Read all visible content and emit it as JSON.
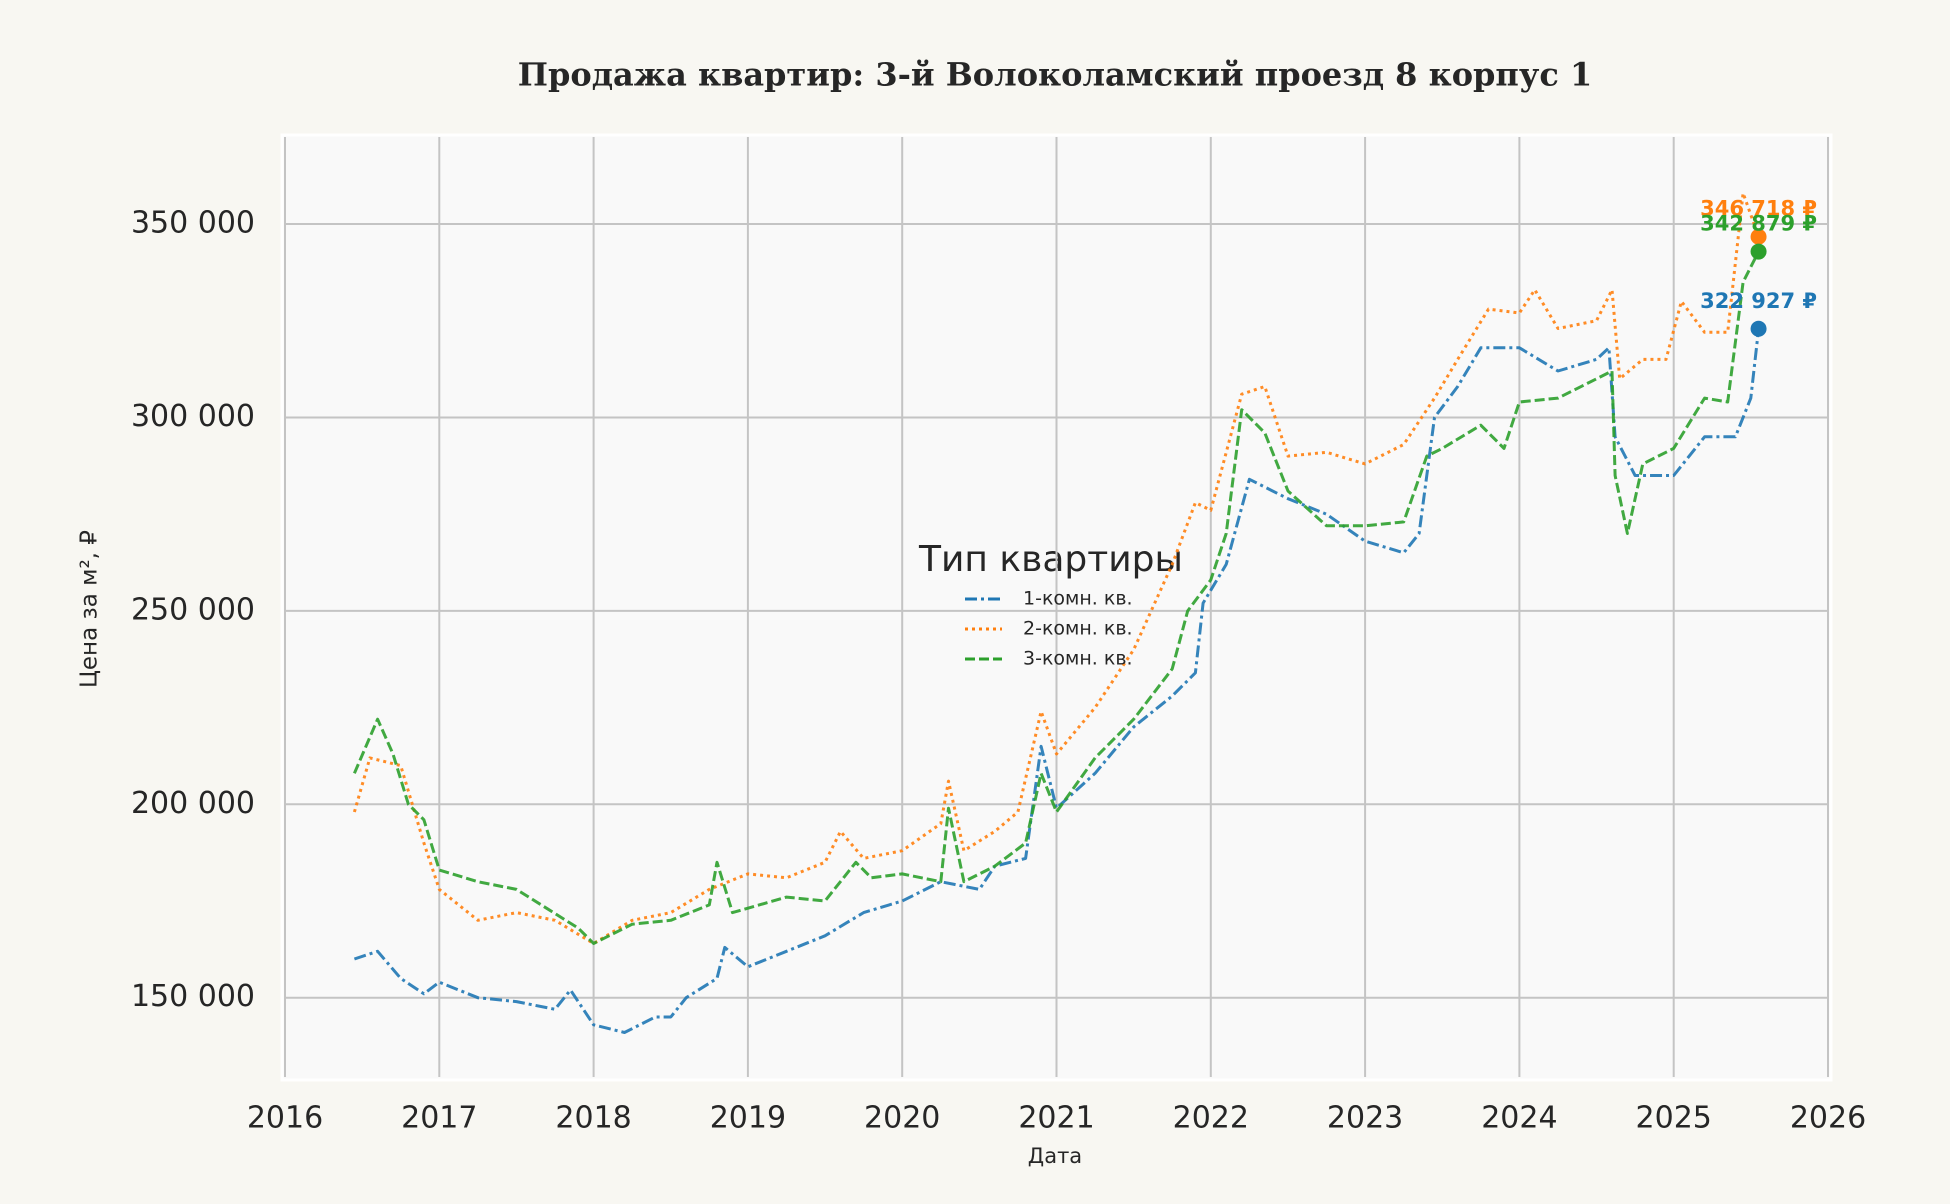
{
  "chart_data": {
    "type": "line",
    "title": "Продажа квартир: 3-й Волоколамский проезд 8 корпус 1",
    "x_label": "Дата",
    "y_label": "Цена за м², ₽",
    "legend_title": "Тип квартиры",
    "grid": true,
    "xlim": [
      2016,
      2026
    ],
    "xticks": [
      2016,
      2017,
      2018,
      2019,
      2020,
      2021,
      2022,
      2023,
      2024,
      2025,
      2026
    ],
    "ylim": [
      129500,
      372500
    ],
    "yticks": [
      {
        "value": 150000,
        "label": "150 000"
      },
      {
        "value": 200000,
        "label": "200 000"
      },
      {
        "value": 250000,
        "label": "250 000"
      },
      {
        "value": 300000,
        "label": "300 000"
      },
      {
        "value": 350000,
        "label": "350 000"
      }
    ],
    "series": [
      {
        "name": "1-комн. кв.",
        "color": "#1f77b4",
        "linestyle": "dashdot",
        "x": [
          2016.45,
          2016.6,
          2016.75,
          2016.9,
          2017.0,
          2017.25,
          2017.5,
          2017.75,
          2017.85,
          2018.0,
          2018.2,
          2018.4,
          2018.5,
          2018.6,
          2018.8,
          2018.85,
          2019.0,
          2019.25,
          2019.5,
          2019.75,
          2020.0,
          2020.25,
          2020.5,
          2020.6,
          2020.8,
          2020.9,
          2021.0,
          2021.25,
          2021.5,
          2021.75,
          2021.9,
          2021.95,
          2022.1,
          2022.25,
          2022.5,
          2022.75,
          2023.0,
          2023.25,
          2023.35,
          2023.45,
          2023.6,
          2023.75,
          2024.0,
          2024.25,
          2024.5,
          2024.58,
          2024.62,
          2024.75,
          2025.0,
          2025.2,
          2025.4,
          2025.5,
          2025.55
        ],
        "values": [
          160000,
          162000,
          155000,
          151000,
          154000,
          150000,
          149000,
          147000,
          152000,
          143000,
          141000,
          145000,
          145000,
          150000,
          155000,
          163000,
          158000,
          162000,
          166000,
          172000,
          175000,
          180000,
          178000,
          184000,
          186000,
          215000,
          199000,
          208000,
          220000,
          228000,
          234000,
          252000,
          262000,
          284000,
          279000,
          275000,
          268000,
          265000,
          270000,
          300000,
          308000,
          318000,
          318000,
          312000,
          315000,
          318000,
          295000,
          285000,
          285000,
          295000,
          295000,
          305000,
          322927
        ]
      },
      {
        "name": "2-комн. кв.",
        "color": "#ff7f0e",
        "linestyle": "dotted",
        "x": [
          2016.45,
          2016.55,
          2016.75,
          2016.9,
          2017.0,
          2017.25,
          2017.5,
          2017.75,
          2018.0,
          2018.25,
          2018.5,
          2018.75,
          2019.0,
          2019.25,
          2019.5,
          2019.6,
          2019.75,
          2020.0,
          2020.25,
          2020.3,
          2020.4,
          2020.6,
          2020.75,
          2020.9,
          2021.0,
          2021.25,
          2021.5,
          2021.75,
          2021.9,
          2022.0,
          2022.2,
          2022.35,
          2022.5,
          2022.75,
          2023.0,
          2023.25,
          2023.45,
          2023.6,
          2023.8,
          2024.0,
          2024.1,
          2024.25,
          2024.5,
          2024.6,
          2024.65,
          2024.8,
          2024.95,
          2025.05,
          2025.2,
          2025.35,
          2025.45,
          2025.55
        ],
        "values": [
          198000,
          212000,
          210000,
          190000,
          178000,
          170000,
          172000,
          170000,
          164000,
          170000,
          172000,
          178000,
          182000,
          181000,
          185000,
          193000,
          186000,
          188000,
          195000,
          206000,
          188000,
          193000,
          198000,
          224000,
          213000,
          225000,
          240000,
          262000,
          278000,
          276000,
          306000,
          308000,
          290000,
          291000,
          288000,
          293000,
          305000,
          315000,
          328000,
          327000,
          333000,
          323000,
          325000,
          333000,
          310000,
          315000,
          315000,
          330000,
          322000,
          322000,
          358000,
          346718
        ]
      },
      {
        "name": "3-комн. кв.",
        "color": "#2ca02c",
        "linestyle": "dashed",
        "x": [
          2016.45,
          2016.6,
          2016.7,
          2016.8,
          2016.9,
          2017.0,
          2017.25,
          2017.5,
          2017.7,
          2017.9,
          2018.0,
          2018.25,
          2018.5,
          2018.75,
          2018.8,
          2018.9,
          2019.25,
          2019.5,
          2019.7,
          2019.8,
          2020.0,
          2020.25,
          2020.3,
          2020.4,
          2020.6,
          2020.8,
          2020.9,
          2021.0,
          2021.25,
          2021.5,
          2021.75,
          2021.85,
          2022.0,
          2022.1,
          2022.2,
          2022.35,
          2022.5,
          2022.75,
          2023.0,
          2023.25,
          2023.4,
          2023.5,
          2023.75,
          2023.9,
          2024.0,
          2024.25,
          2024.5,
          2024.6,
          2024.62,
          2024.7,
          2024.8,
          2025.0,
          2025.2,
          2025.35,
          2025.45,
          2025.55
        ],
        "values": [
          208000,
          222000,
          213000,
          200000,
          196000,
          183000,
          180000,
          178000,
          173000,
          168000,
          164000,
          169000,
          170000,
          174000,
          185000,
          172000,
          176000,
          175000,
          185000,
          181000,
          182000,
          180000,
          199000,
          180000,
          184000,
          190000,
          208000,
          198000,
          212000,
          222000,
          235000,
          250000,
          258000,
          270000,
          302000,
          296000,
          281000,
          272000,
          272000,
          273000,
          290000,
          292000,
          298000,
          292000,
          304000,
          305000,
          310000,
          312000,
          285000,
          270000,
          288000,
          292000,
          305000,
          304000,
          335000,
          342879
        ]
      }
    ],
    "annotations": [
      {
        "text": "346 718 ₽",
        "x": 2025.55,
        "y": 346718,
        "color": "#ff7f0e"
      },
      {
        "text": "342 879 ₽",
        "x": 2025.55,
        "y": 342879,
        "color": "#2ca02c"
      },
      {
        "text": "322 927 ₽",
        "x": 2025.55,
        "y": 322927,
        "color": "#1f77b4"
      }
    ]
  }
}
